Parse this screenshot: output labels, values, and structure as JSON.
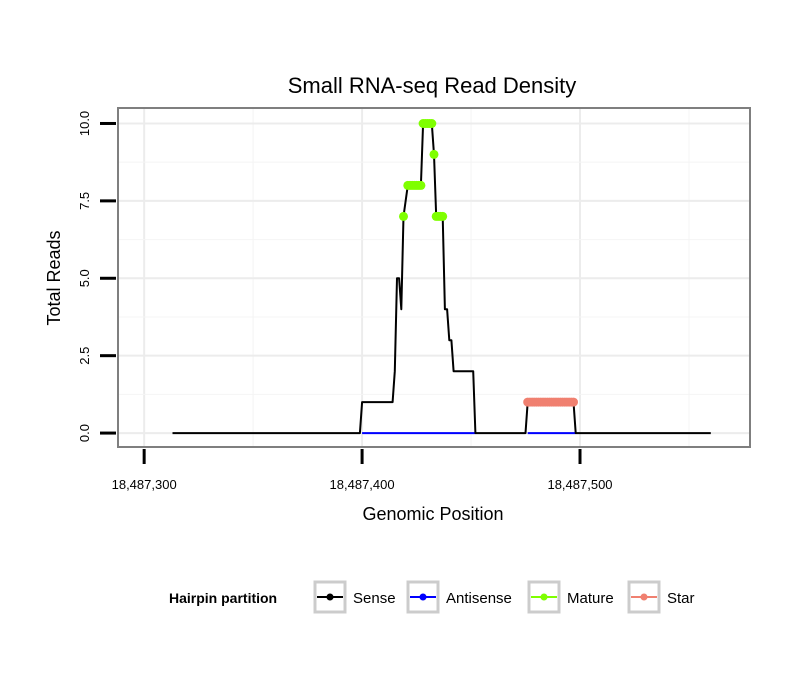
{
  "chart_data": {
    "type": "line",
    "title": "Small RNA-seq Read Density",
    "xlabel": "Genomic Position",
    "ylabel": "Total Reads",
    "xlim": [
      18487288,
      18487578
    ],
    "ylim": [
      -0.45,
      10.5
    ],
    "x_ticks": [
      18487300,
      18487400,
      18487500
    ],
    "x_tick_labels": [
      "18,487,300",
      "18,487,400",
      "18,487,500"
    ],
    "y_ticks": [
      0,
      2.5,
      5,
      7.5,
      10
    ],
    "y_tick_labels": [
      "0.0",
      "2.5",
      "5.0",
      "7.5",
      "10.0"
    ],
    "grid": true,
    "legend_position": "bottom",
    "legend_title": "Hairpin partition",
    "series": [
      {
        "name": "Sense",
        "color": "#000000",
        "points": [
          [
            18487313,
            0
          ],
          [
            18487399,
            0
          ],
          [
            18487400,
            1
          ],
          [
            18487414,
            1
          ],
          [
            18487415,
            2
          ],
          [
            18487416,
            5
          ],
          [
            18487417,
            5
          ],
          [
            18487418,
            4
          ],
          [
            18487419,
            7
          ],
          [
            18487421,
            8
          ],
          [
            18487427,
            8
          ],
          [
            18487428,
            10
          ],
          [
            18487432,
            10
          ],
          [
            18487433,
            9
          ],
          [
            18487434,
            7
          ],
          [
            18487437,
            7
          ],
          [
            18487438,
            4
          ],
          [
            18487439,
            4
          ],
          [
            18487440,
            3
          ],
          [
            18487441,
            3
          ],
          [
            18487442,
            2
          ],
          [
            18487451,
            2
          ],
          [
            18487452,
            0
          ],
          [
            18487475,
            0
          ],
          [
            18487476,
            1
          ],
          [
            18487497,
            1
          ],
          [
            18487498,
            0
          ],
          [
            18487560,
            0
          ]
        ]
      },
      {
        "name": "Antisense",
        "color": "#0000ff",
        "points": [
          [
            18487400,
            0
          ],
          [
            18487452,
            0
          ],
          [
            18487476,
            0
          ],
          [
            18487498,
            0
          ]
        ]
      },
      {
        "name": "Mature",
        "color": "#7fff00",
        "points": [
          [
            18487419,
            7
          ],
          [
            18487421,
            8
          ],
          [
            18487422,
            8
          ],
          [
            18487423,
            8
          ],
          [
            18487424,
            8
          ],
          [
            18487425,
            8
          ],
          [
            18487426,
            8
          ],
          [
            18487427,
            8
          ],
          [
            18487428,
            10
          ],
          [
            18487429,
            10
          ],
          [
            18487430,
            10
          ],
          [
            18487431,
            10
          ],
          [
            18487432,
            10
          ],
          [
            18487433,
            9
          ],
          [
            18487434,
            7
          ],
          [
            18487435,
            7
          ],
          [
            18487436,
            7
          ],
          [
            18487437,
            7
          ]
        ]
      },
      {
        "name": "Star",
        "color": "#f08070",
        "points": [
          [
            18487476,
            1
          ],
          [
            18487477,
            1
          ],
          [
            18487478,
            1
          ],
          [
            18487479,
            1
          ],
          [
            18487480,
            1
          ],
          [
            18487481,
            1
          ],
          [
            18487482,
            1
          ],
          [
            18487483,
            1
          ],
          [
            18487484,
            1
          ],
          [
            18487485,
            1
          ],
          [
            18487486,
            1
          ],
          [
            18487487,
            1
          ],
          [
            18487488,
            1
          ],
          [
            18487489,
            1
          ],
          [
            18487490,
            1
          ],
          [
            18487491,
            1
          ],
          [
            18487492,
            1
          ],
          [
            18487493,
            1
          ],
          [
            18487494,
            1
          ],
          [
            18487495,
            1
          ],
          [
            18487496,
            1
          ],
          [
            18487497,
            1
          ]
        ]
      }
    ]
  }
}
